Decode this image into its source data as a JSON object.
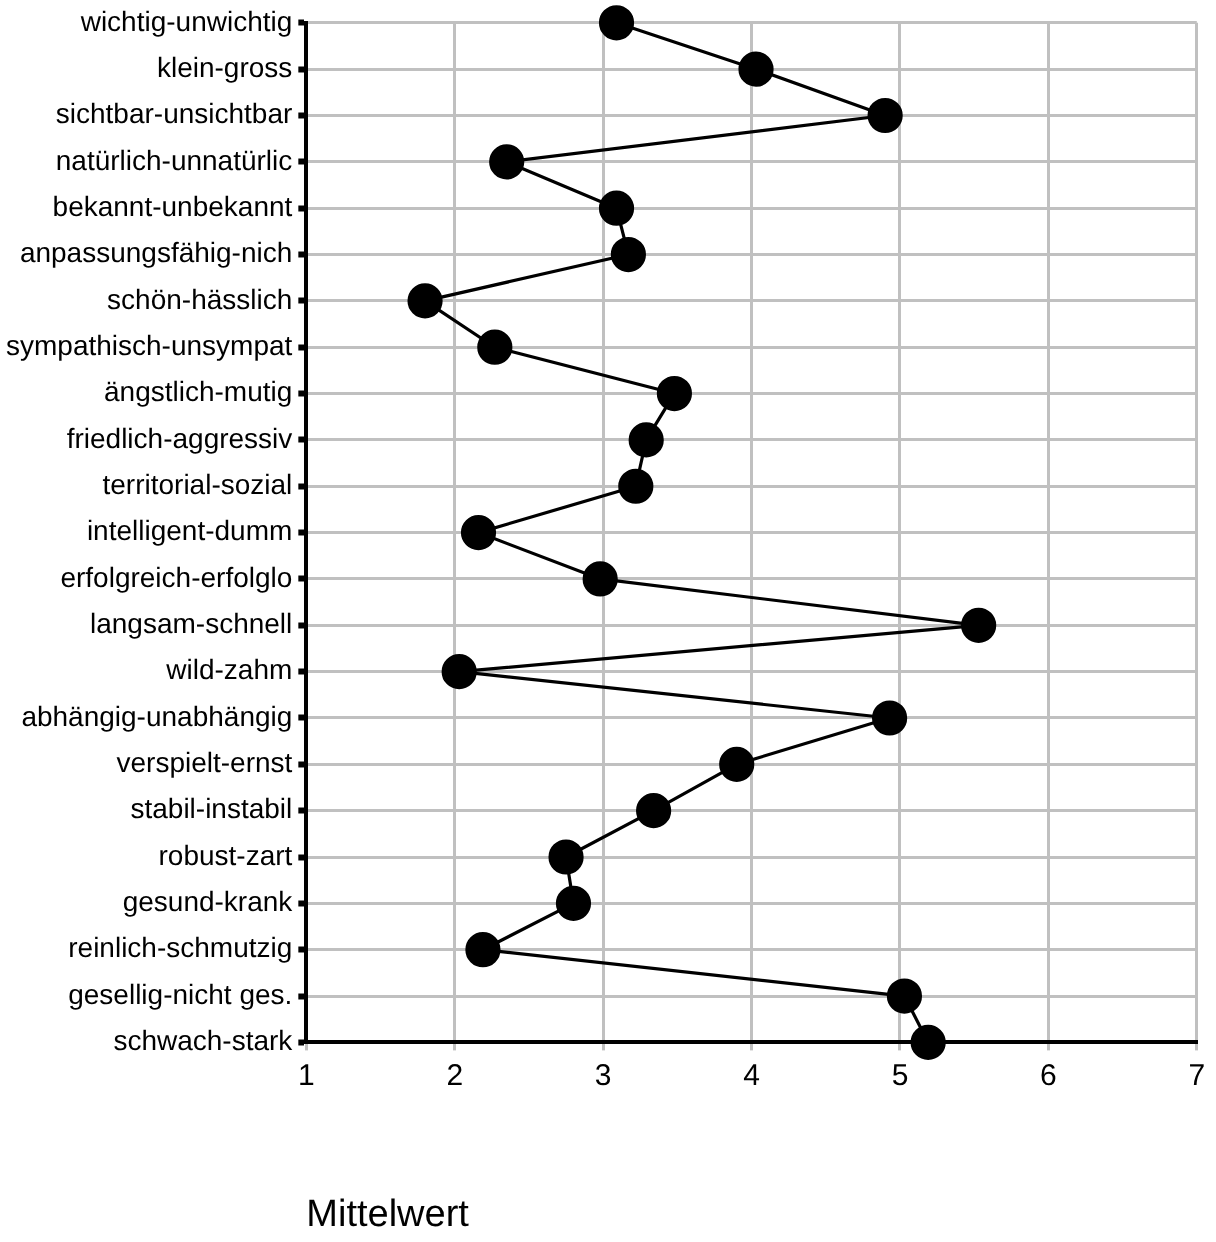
{
  "chart_data": {
    "type": "line",
    "orientation": "horizontal",
    "xlabel": "Mittelwert",
    "categories": [
      "wichtig-unwichtig",
      "klein-gross",
      "sichtbar-unsichtbar",
      "natürlich-unnatürlic",
      "bekannt-unbekannt",
      "anpassungsfähig-nich",
      "schön-hässlich",
      "sympathisch-unsympat",
      "ängstlich-mutig",
      "friedlich-aggressiv",
      "territorial-sozial",
      "intelligent-dumm",
      "erfolgreich-erfolglo",
      "langsam-schnell",
      "wild-zahm",
      "abhängig-unabhängig",
      "verspielt-ernst",
      "stabil-instabil",
      "robust-zart",
      "gesund-krank",
      "reinlich-schmutzig",
      "gesellig-nicht ges.",
      "schwach-stark"
    ],
    "values": [
      3.09,
      4.03,
      4.9,
      2.35,
      3.09,
      3.17,
      1.8,
      2.27,
      3.48,
      3.29,
      3.22,
      2.16,
      2.98,
      5.53,
      2.03,
      4.93,
      3.9,
      3.34,
      2.75,
      2.8,
      2.19,
      5.03,
      5.19
    ],
    "color": "#000000",
    "xlim": [
      1,
      7
    ],
    "xticks": [
      1,
      2,
      3,
      4,
      5,
      6,
      7
    ],
    "grid": true,
    "marker": "circle",
    "line_style": "solid"
  }
}
